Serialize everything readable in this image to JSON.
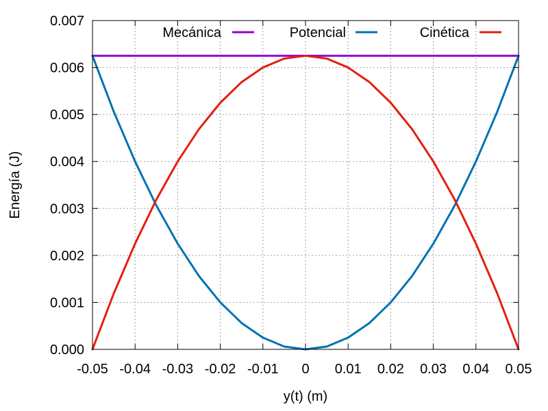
{
  "chart_data": {
    "type": "line",
    "title": "",
    "xlabel": "y(t) (m)",
    "ylabel": "Energía (J)",
    "xlim": [
      -0.05,
      0.05
    ],
    "ylim": [
      0.0,
      0.007
    ],
    "grid": true,
    "legend_position": "top-right",
    "x_ticks": [
      "-0.05",
      "-0.04",
      "-0.03",
      "-0.02",
      "-0.01",
      "0",
      "0.01",
      "0.02",
      "0.03",
      "0.04",
      "0.05"
    ],
    "y_ticks": [
      "0.000",
      "0.001",
      "0.002",
      "0.003",
      "0.004",
      "0.005",
      "0.006",
      "0.007"
    ],
    "x": [
      -0.05,
      -0.045,
      -0.04,
      -0.035,
      -0.03,
      -0.025,
      -0.02,
      -0.015,
      -0.01,
      -0.005,
      0,
      0.005,
      0.01,
      0.015,
      0.02,
      0.025,
      0.03,
      0.035,
      0.04,
      0.045,
      0.05
    ],
    "series": [
      {
        "name": "Mecánica",
        "color": "#9400d3",
        "values": [
          0.00625,
          0.00625,
          0.00625,
          0.00625,
          0.00625,
          0.00625,
          0.00625,
          0.00625,
          0.00625,
          0.00625,
          0.00625,
          0.00625,
          0.00625,
          0.00625,
          0.00625,
          0.00625,
          0.00625,
          0.00625,
          0.00625,
          0.00625,
          0.00625
        ]
      },
      {
        "name": "Potencial",
        "color": "#0072b2",
        "values": [
          0.00625,
          0.00506,
          0.004,
          0.00306,
          0.00225,
          0.00156,
          0.001,
          0.00056,
          0.00025,
          6e-05,
          0.0,
          6e-05,
          0.00025,
          0.00056,
          0.001,
          0.00156,
          0.00225,
          0.00306,
          0.004,
          0.00506,
          0.00625
        ]
      },
      {
        "name": "Cinética",
        "color": "#e51e10",
        "values": [
          0.0,
          0.00119,
          0.00225,
          0.00319,
          0.004,
          0.00469,
          0.00525,
          0.00569,
          0.006,
          0.00619,
          0.00625,
          0.00619,
          0.006,
          0.00569,
          0.00525,
          0.00469,
          0.004,
          0.00319,
          0.00225,
          0.00119,
          0.0
        ]
      }
    ]
  }
}
